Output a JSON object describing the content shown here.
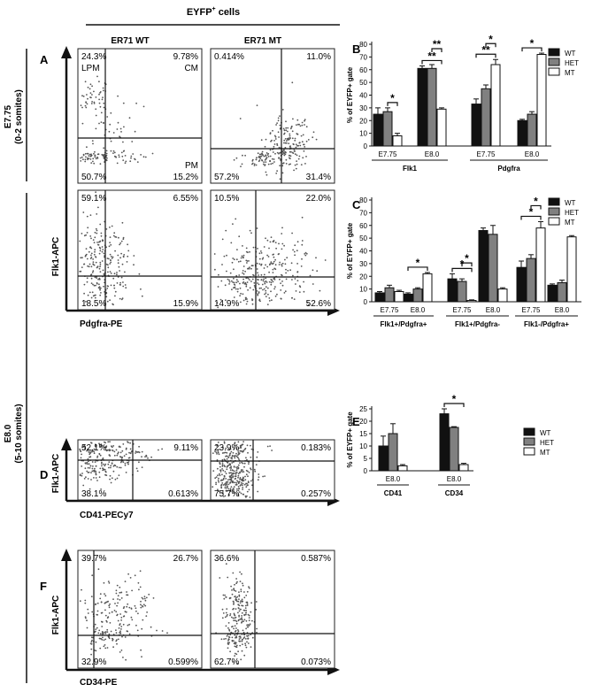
{
  "header": {
    "title_main": "EYFP",
    "title_sup": "+",
    "title_suffix": " cells",
    "col_wt": "ER71 WT",
    "col_mt": "ER71 MT"
  },
  "rows": {
    "e775_stage": "E7.75",
    "e775_somites": "(0-2 somites)",
    "e80_stage": "E8.0",
    "e80_somites": "(5-10 somites)"
  },
  "panel_letters": {
    "A": "A",
    "B": "B",
    "C": "C",
    "D": "D",
    "E": "E",
    "F": "F"
  },
  "flow_axes": {
    "y_label": "Flk1-APC",
    "x_pdgfra": "Pdgfra-PE",
    "x_cd41": "CD41-PECy7",
    "x_cd34": "CD34-PE"
  },
  "flow_plots": [
    {
      "id": "A-WT",
      "tl": "24.3%",
      "tr": "9.78%",
      "bl": "50.7%",
      "br": "15.2%",
      "lbl_tl": "LPM",
      "lbl_tr": "CM",
      "lbl_br": "PM"
    },
    {
      "id": "A-MT",
      "tl": "0.414%",
      "tr": "11.0%",
      "bl": "57.2%",
      "br": "31.4%"
    },
    {
      "id": "A2-WT",
      "tl": "59.1%",
      "tr": "6.55%",
      "bl": "18.5%",
      "br": "15.9%"
    },
    {
      "id": "A2-MT",
      "tl": "10.5%",
      "tr": "22.0%",
      "bl": "14.9%",
      "br": "52.6%"
    },
    {
      "id": "D-WT",
      "tl": "52.1%",
      "tr": "9.11%",
      "bl": "38.1%",
      "br": "0.613%"
    },
    {
      "id": "D-MT",
      "tl": "23.9%",
      "tr": "0.183%",
      "bl": "75.7%",
      "br": "0.257%"
    },
    {
      "id": "F-WT",
      "tl": "39.7%",
      "tr": "26.7%",
      "bl": "32.9%",
      "br": "0.599%"
    },
    {
      "id": "F-MT",
      "tl": "36.6%",
      "tr": "0.587%",
      "bl": "62.7%",
      "br": "0.073%"
    }
  ],
  "legend": [
    "WT",
    "HET",
    "MT"
  ],
  "colors": {
    "WT": "#111111",
    "HET": "#808080",
    "MT": "#ffffff"
  },
  "chart_data": [
    {
      "panel": "B",
      "type": "bar",
      "ylabel": "% of EYFP+ gate",
      "ylim": [
        0,
        80
      ],
      "yticks": [
        0,
        10,
        20,
        30,
        40,
        50,
        60,
        70,
        80
      ],
      "categories": [
        "E7.75",
        "E8.0",
        "E7.75",
        "E8.0"
      ],
      "groups": [
        "Flk1",
        "Pdgfra"
      ],
      "series": [
        {
          "name": "WT",
          "values": [
            25,
            61,
            33,
            20
          ],
          "errors": [
            5,
            2,
            4,
            1
          ]
        },
        {
          "name": "HET",
          "values": [
            27,
            61,
            45,
            25
          ],
          "errors": [
            3,
            3,
            3,
            2
          ]
        },
        {
          "name": "MT",
          "values": [
            8,
            29,
            64,
            72
          ],
          "errors": [
            2,
            1,
            4,
            1
          ]
        }
      ],
      "significance": [
        {
          "label": "*",
          "from": [
            0,
            1
          ],
          "to": [
            0,
            2
          ]
        },
        {
          "label": "**",
          "from": [
            1,
            0
          ],
          "to": [
            1,
            2
          ]
        },
        {
          "label": "**",
          "from": [
            1,
            1
          ],
          "to": [
            1,
            2
          ]
        },
        {
          "label": "**",
          "from": [
            2,
            0
          ],
          "to": [
            2,
            2
          ]
        },
        {
          "label": "*",
          "from": [
            2,
            1
          ],
          "to": [
            2,
            2
          ]
        },
        {
          "label": "*",
          "from": [
            3,
            0
          ],
          "to": [
            3,
            2
          ]
        }
      ]
    },
    {
      "panel": "C",
      "type": "bar",
      "ylabel": "% of EYFP+ gate",
      "ylim": [
        0,
        80
      ],
      "yticks": [
        0,
        10,
        20,
        30,
        40,
        50,
        60,
        70,
        80
      ],
      "categories": [
        "E7.75",
        "E8.0",
        "E7.75",
        "E8.0",
        "E7.75",
        "E8.0"
      ],
      "groups": [
        "Flk1+/Pdgfra+",
        "Flk1+/Pdgfra-",
        "Flk1-/Pdgfra+"
      ],
      "series": [
        {
          "name": "WT",
          "values": [
            7,
            6,
            18,
            56,
            27,
            13
          ],
          "errors": [
            1,
            1,
            4,
            2,
            5,
            1
          ]
        },
        {
          "name": "HET",
          "values": [
            11,
            10,
            16,
            53,
            34,
            15
          ],
          "errors": [
            2,
            1,
            2,
            7,
            3,
            2
          ]
        },
        {
          "name": "MT",
          "values": [
            8,
            22,
            1,
            10,
            58,
            51
          ],
          "errors": [
            1,
            1,
            0.5,
            1,
            5,
            1
          ]
        }
      ],
      "significance": [
        {
          "label": "*",
          "from": [
            1,
            0
          ],
          "to": [
            1,
            2
          ]
        },
        {
          "label": "*",
          "from": [
            2,
            0
          ],
          "to": [
            2,
            2
          ]
        },
        {
          "label": "*",
          "from": [
            2,
            1
          ],
          "to": [
            2,
            2
          ]
        },
        {
          "label": "*",
          "from": [
            4,
            0
          ],
          "to": [
            4,
            2
          ]
        },
        {
          "label": "*",
          "from": [
            4,
            1
          ],
          "to": [
            4,
            2
          ]
        }
      ]
    },
    {
      "panel": "E",
      "type": "bar",
      "ylabel": "% of EYFP+ gate",
      "ylim": [
        0,
        25
      ],
      "yticks": [
        0,
        5,
        10,
        15,
        20,
        25
      ],
      "categories": [
        "E8.0",
        "E8.0"
      ],
      "groups": [
        "CD41",
        "CD34"
      ],
      "series": [
        {
          "name": "WT",
          "values": [
            10,
            23
          ],
          "errors": [
            4,
            2
          ]
        },
        {
          "name": "HET",
          "values": [
            15,
            17.5
          ],
          "errors": [
            4,
            0.3
          ]
        },
        {
          "name": "MT",
          "values": [
            2,
            2.5
          ],
          "errors": [
            0.5,
            0.5
          ]
        }
      ],
      "significance": [
        {
          "label": "*",
          "from": [
            1,
            0
          ],
          "to": [
            1,
            2
          ]
        }
      ]
    }
  ]
}
